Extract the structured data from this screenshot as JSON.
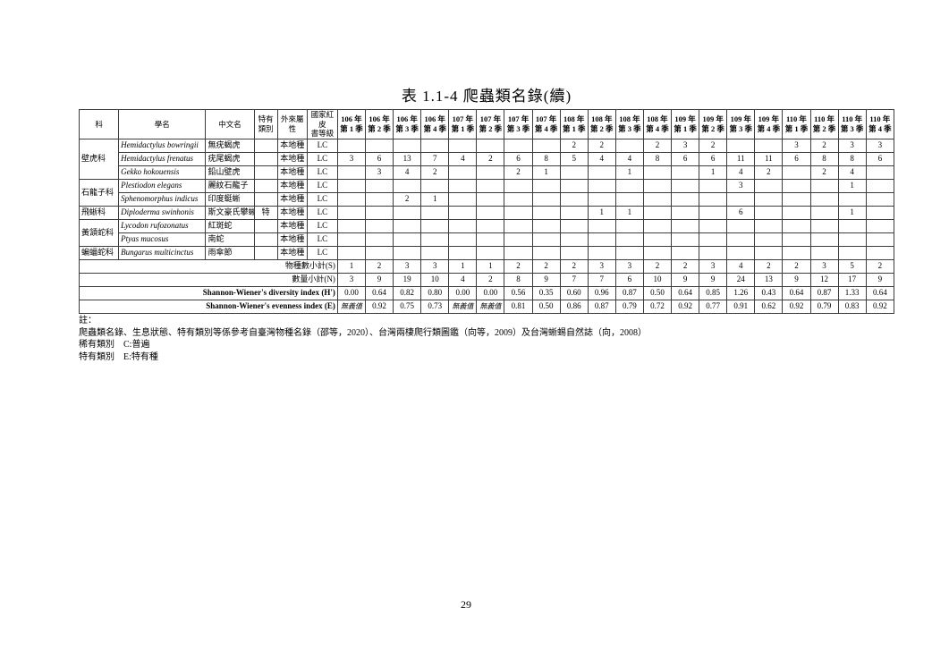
{
  "page": {
    "title": "表 1.1-4 爬蟲類名錄(續)",
    "page_number": "29"
  },
  "table": {
    "header": {
      "family": "科",
      "scientific_name": "學名",
      "chinese_name": "中文名",
      "endemic_category": "特有\n類別",
      "origin_attribute": "外來屬\n性",
      "redlist_level": "國家紅皮\n書等級",
      "quarters": [
        "106 年\n第 1 季",
        "106 年\n第 2 季",
        "106 年\n第 3 季",
        "106 年\n第 4 季",
        "107 年\n第 1 季",
        "107 年\n第 2 季",
        "107 年\n第 3 季",
        "107 年\n第 4 季",
        "108 年\n第 1 季",
        "108 年\n第 2 季",
        "108 年\n第 3 季",
        "108 年\n第 4 季",
        "109 年\n第 1 季",
        "109 年\n第 2 季",
        "109 年\n第 3 季",
        "109 年\n第 4 季",
        "110 年\n第 1 季",
        "110 年\n第 2 季",
        "110 年\n第 3 季",
        "110 年\n第 4 季"
      ]
    },
    "rows": [
      {
        "family": "壁虎科",
        "rowspan": 3,
        "sci": "Hemidactylus bowringii",
        "cn": "無疣蝎虎",
        "endemic": "",
        "origin": "本地種",
        "redlist": "LC",
        "counts": [
          "",
          "",
          "",
          "",
          "",
          "",
          "",
          "",
          "2",
          "2",
          "",
          "2",
          "3",
          "2",
          "",
          "",
          "3",
          "2",
          "3",
          "3"
        ]
      },
      {
        "sci": "Hemidactylus frenatus",
        "cn": "疣尾蝎虎",
        "endemic": "",
        "origin": "本地種",
        "redlist": "LC",
        "counts": [
          "3",
          "6",
          "13",
          "7",
          "4",
          "2",
          "6",
          "8",
          "5",
          "4",
          "4",
          "8",
          "6",
          "6",
          "11",
          "11",
          "6",
          "8",
          "8",
          "6"
        ]
      },
      {
        "sci": "Gekko hokouensis",
        "cn": "鉛山壁虎",
        "endemic": "",
        "origin": "本地種",
        "redlist": "LC",
        "counts": [
          "",
          "3",
          "4",
          "2",
          "",
          "",
          "2",
          "1",
          "",
          "",
          "1",
          "",
          "",
          "1",
          "4",
          "2",
          "",
          "2",
          "4",
          ""
        ]
      },
      {
        "family": "石龍子科",
        "rowspan": 2,
        "sci": "Plestiodon elegans",
        "cn": "麗紋石龍子",
        "endemic": "",
        "origin": "本地種",
        "redlist": "LC",
        "counts": [
          "",
          "",
          "",
          "",
          "",
          "",
          "",
          "",
          "",
          "",
          "",
          "",
          "",
          "",
          "3",
          "",
          "",
          "",
          "1",
          ""
        ]
      },
      {
        "sci": "Sphenomorphus indicus",
        "cn": "印度蜓蜥",
        "endemic": "",
        "origin": "本地種",
        "redlist": "LC",
        "counts": [
          "",
          "",
          "2",
          "1",
          "",
          "",
          "",
          "",
          "",
          "",
          "",
          "",
          "",
          "",
          "",
          "",
          "",
          "",
          "",
          ""
        ]
      },
      {
        "family": "飛蜥科",
        "rowspan": 1,
        "sci": "Diploderma swinhonis",
        "cn": "斯文豪氏攀蜥",
        "endemic": "特",
        "origin": "本地種",
        "redlist": "LC",
        "counts": [
          "",
          "",
          "",
          "",
          "",
          "",
          "",
          "",
          "",
          "1",
          "1",
          "",
          "",
          "",
          "6",
          "",
          "",
          "",
          "1",
          ""
        ]
      },
      {
        "family": "黃頷蛇科",
        "rowspan": 2,
        "sci": "Lycodon rufozonatus",
        "cn": "紅斑蛇",
        "endemic": "",
        "origin": "本地種",
        "redlist": "LC",
        "counts": [
          "",
          "",
          "",
          "",
          "",
          "",
          "",
          "",
          "",
          "",
          "",
          "",
          "",
          "",
          "",
          "",
          "",
          "",
          "",
          ""
        ]
      },
      {
        "sci": "Ptyas mucosus",
        "cn": "南蛇",
        "endemic": "",
        "origin": "本地種",
        "redlist": "LC",
        "counts": [
          "",
          "",
          "",
          "",
          "",
          "",
          "",
          "",
          "",
          "",
          "",
          "",
          "",
          "",
          "",
          "",
          "",
          "",
          "",
          ""
        ]
      },
      {
        "family": "蝙蝠蛇科",
        "rowspan": 1,
        "sci": "Bungarus multicinctus",
        "cn": "雨傘節",
        "endemic": "",
        "origin": "本地種",
        "redlist": "LC",
        "counts": [
          "",
          "",
          "",
          "",
          "",
          "",
          "",
          "",
          "",
          "",
          "",
          "",
          "",
          "",
          "",
          "",
          "",
          "",
          "",
          ""
        ]
      }
    ],
    "summary": [
      {
        "label": "物種數小計(S)",
        "en": false,
        "values": [
          "1",
          "2",
          "3",
          "3",
          "1",
          "1",
          "2",
          "2",
          "2",
          "3",
          "3",
          "2",
          "2",
          "3",
          "4",
          "2",
          "2",
          "3",
          "5",
          "2"
        ]
      },
      {
        "label": "數量小計(N)",
        "en": false,
        "values": [
          "3",
          "9",
          "19",
          "10",
          "4",
          "2",
          "8",
          "9",
          "7",
          "7",
          "6",
          "10",
          "9",
          "9",
          "24",
          "13",
          "9",
          "12",
          "17",
          "9"
        ]
      },
      {
        "label": "Shannon-Wiener's diversity index (H')",
        "en": true,
        "values": [
          "0.00",
          "0.64",
          "0.82",
          "0.80",
          "0.00",
          "0.00",
          "0.56",
          "0.35",
          "0.60",
          "0.96",
          "0.87",
          "0.50",
          "0.64",
          "0.85",
          "1.26",
          "0.43",
          "0.64",
          "0.87",
          "1.33",
          "0.64"
        ]
      },
      {
        "label": "Shannon-Wiener's evenness index (E)",
        "en": true,
        "values": [
          "無義值",
          "0.92",
          "0.75",
          "0.73",
          "無義值",
          "無義值",
          "0.81",
          "0.50",
          "0.86",
          "0.87",
          "0.79",
          "0.72",
          "0.92",
          "0.77",
          "0.91",
          "0.62",
          "0.92",
          "0.79",
          "0.83",
          "0.92"
        ]
      }
    ]
  },
  "notes": {
    "label": "註：",
    "lines": [
      "爬蟲類名錄、生息狀態、特有類別等係參考自臺灣物種名錄（邵等，2020）、台灣兩棲爬行類圖鑑（向等，2009）及台灣蜥蜴自然誌（向，2008）",
      "稀有類別　C:普遍",
      "特有類別　E:特有種"
    ]
  }
}
